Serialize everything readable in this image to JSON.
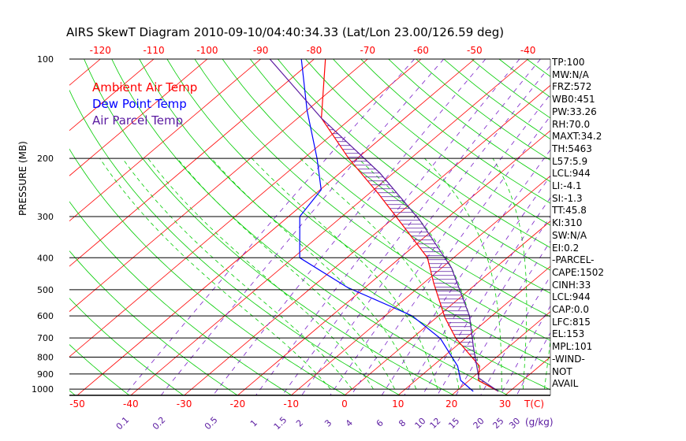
{
  "chart_data": {
    "type": "line",
    "title": "AIRS SkewT Diagram 2010-09-10/04:40:34.33 (Lat/Lon 23.00/126.59 deg)",
    "ylabel": "PRESSURE (MB)",
    "xlabel": "T(C)",
    "mixing_ratio_label": "(g/kg)",
    "pressure_ticks": [
      100,
      200,
      300,
      400,
      500,
      600,
      700,
      800,
      900,
      1000
    ],
    "pressure_tick_labels": [
      "100",
      "200",
      "300",
      "400",
      "500",
      "600",
      "700",
      "800",
      "900",
      "1000"
    ],
    "top_temp_ticks": [
      -120,
      -110,
      -100,
      -90,
      -80,
      -70,
      -60,
      -50,
      -40
    ],
    "top_temp_tick_labels": [
      "-120",
      "-110",
      "-100",
      "-90",
      "-80",
      "-70",
      "-60",
      "-50",
      "-40"
    ],
    "bottom_temp_ticks": [
      -50,
      -40,
      -30,
      -20,
      -10,
      0,
      10,
      20,
      30
    ],
    "bottom_temp_tick_labels": [
      "-50",
      "-40",
      "-30",
      "-20",
      "-10",
      "0",
      "10",
      "20",
      "30"
    ],
    "mixing_ratios": [
      0.1,
      0.2,
      0.5,
      1,
      1.5,
      2,
      3,
      4,
      6,
      8,
      10,
      12,
      15,
      20,
      25,
      30
    ],
    "mixing_ratio_labels": [
      "0.1",
      "0.2",
      "0.5",
      "1",
      "1.5",
      "2",
      "3",
      "4",
      "6",
      "8",
      "10",
      "12",
      "15",
      "20",
      "25",
      "30"
    ],
    "plim": [
      100,
      1045
    ],
    "legend": [
      {
        "name": "Ambient Air Temp",
        "color": "#ff0000"
      },
      {
        "name": "Dew Point Temp",
        "color": "#0000ff"
      },
      {
        "name": "Air Parcel Temp",
        "color": "#5a1aa0"
      }
    ],
    "series": [
      {
        "name": "Ambient Air Temp",
        "color": "#ff0000",
        "pressure": [
          1016,
          941,
          852,
          703,
          606,
          479,
          400,
          300,
          257,
          200,
          151,
          100
        ],
        "temp": [
          27.9,
          21.7,
          18.8,
          8.3,
          1.5,
          -8.0,
          -14.9,
          -29.9,
          -38.0,
          -51.6,
          -65.6,
          -77.9
        ]
      },
      {
        "name": "Dew Point Temp",
        "color": "#0000ff",
        "pressure": [
          1016,
          941,
          852,
          703,
          600,
          492,
          400,
          300,
          249,
          200,
          143,
          100
        ],
        "temp": [
          23.2,
          18.4,
          14.7,
          5.4,
          -4.9,
          -23.3,
          -38.8,
          -47.9,
          -49.8,
          -57.5,
          -70.0,
          -82.4
        ]
      },
      {
        "name": "Air Parcel Temp",
        "color": "#5a1aa0",
        "pressure": [
          1016,
          926,
          743,
          600,
          429,
          308,
          222,
          151,
          100
        ],
        "temp": [
          27.9,
          21.3,
          13.3,
          5.8,
          -8.2,
          -24.6,
          -42.4,
          -65.6,
          -88.3
        ]
      }
    ],
    "colors": {
      "isotherm": "#ff0000",
      "dry_adiabat": "#00cc00",
      "moist_adiabat": "#00cc00",
      "mixing_ratio": "#7a20c8",
      "grid": "#000000",
      "hatch": "#5a1aa0"
    }
  },
  "indices": [
    "TP:100",
    "MW:N/A",
    "FRZ:572",
    "WB0:451",
    "PW:33.26",
    "RH:70.0",
    "MAXT:34.2",
    "TH:5463",
    "L57:5.9",
    "LCL:944",
    "LI:-4.1",
    "SI:-1.3",
    "TT:45.8",
    "KI:310",
    "SW:N/A",
    "EI:0.2",
    "-PARCEL-",
    "CAPE:1502",
    "CINH:33",
    "LCL:944",
    "CAP:0.0",
    "LFC:815",
    "EL:153",
    "MPL:101",
    "-WIND-",
    "NOT",
    "AVAIL"
  ]
}
